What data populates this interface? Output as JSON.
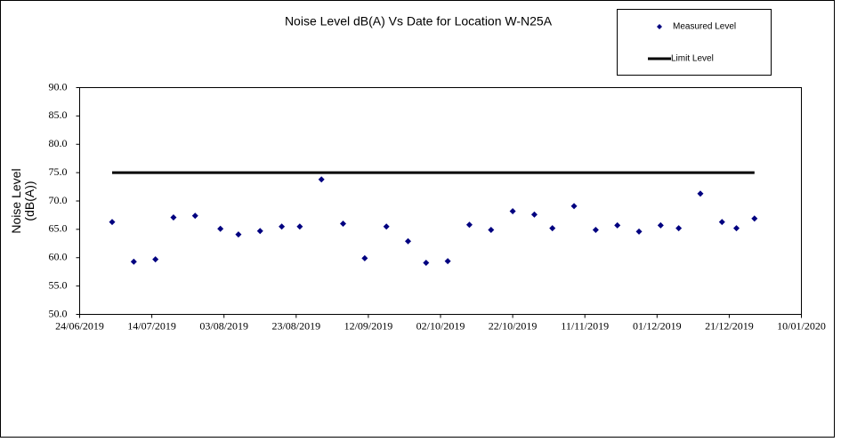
{
  "chart_data": {
    "type": "scatter",
    "title": "Noise Level dB(A) Vs Date for Location W-N25A",
    "ylabel": "Noise Level (dB(A))",
    "ylim": [
      50,
      90
    ],
    "yticks": [
      {
        "value": 50,
        "label": "50.0"
      },
      {
        "value": 55,
        "label": "55.0"
      },
      {
        "value": 60,
        "label": "60.0"
      },
      {
        "value": 65,
        "label": "65.0"
      },
      {
        "value": 70,
        "label": "70.0"
      },
      {
        "value": 75,
        "label": "75.0"
      },
      {
        "value": 80,
        "label": "80.0"
      },
      {
        "value": 85,
        "label": "85.0"
      },
      {
        "value": 90,
        "label": "90.0"
      }
    ],
    "xlim": [
      "2019-06-24",
      "2020-01-10"
    ],
    "xticks": [
      {
        "value": "2019-06-24",
        "label": "24/06/2019"
      },
      {
        "value": "2019-07-14",
        "label": "14/07/2019"
      },
      {
        "value": "2019-08-03",
        "label": "03/08/2019"
      },
      {
        "value": "2019-08-23",
        "label": "23/08/2019"
      },
      {
        "value": "2019-09-12",
        "label": "12/09/2019"
      },
      {
        "value": "2019-10-02",
        "label": "02/10/2019"
      },
      {
        "value": "2019-10-22",
        "label": "22/10/2019"
      },
      {
        "value": "2019-11-11",
        "label": "11/11/2019"
      },
      {
        "value": "2019-12-01",
        "label": "01/12/2019"
      },
      {
        "value": "2019-12-21",
        "label": "21/12/2019"
      },
      {
        "value": "2020-01-10",
        "label": "10/01/2020"
      }
    ],
    "series": [
      {
        "name": "Measured Level",
        "color": "#000080",
        "marker": "diamond",
        "x": [
          "2019-07-03",
          "2019-07-09",
          "2019-07-15",
          "2019-07-20",
          "2019-07-26",
          "2019-08-02",
          "2019-08-07",
          "2019-08-13",
          "2019-08-19",
          "2019-08-24",
          "2019-08-30",
          "2019-09-05",
          "2019-09-11",
          "2019-09-17",
          "2019-09-23",
          "2019-09-28",
          "2019-10-04",
          "2019-10-10",
          "2019-10-16",
          "2019-10-22",
          "2019-10-28",
          "2019-11-02",
          "2019-11-08",
          "2019-11-14",
          "2019-11-20",
          "2019-11-26",
          "2019-12-02",
          "2019-12-07",
          "2019-12-13",
          "2019-12-19",
          "2019-12-23",
          "2019-12-28"
        ],
        "values": [
          66.3,
          59.3,
          59.7,
          67.1,
          67.4,
          65.1,
          64.1,
          64.7,
          65.5,
          65.5,
          73.8,
          66.0,
          59.9,
          65.5,
          62.9,
          59.1,
          59.4,
          65.8,
          64.9,
          68.2,
          67.6,
          65.2,
          69.1,
          64.9,
          65.7,
          64.6,
          65.7,
          65.2,
          71.3,
          66.3,
          65.2,
          66.9
        ]
      },
      {
        "name": "Limit Level",
        "color": "#000000",
        "marker": "line",
        "x": [
          "2019-07-03",
          "2019-12-28"
        ],
        "values": [
          75,
          75
        ]
      }
    ]
  }
}
